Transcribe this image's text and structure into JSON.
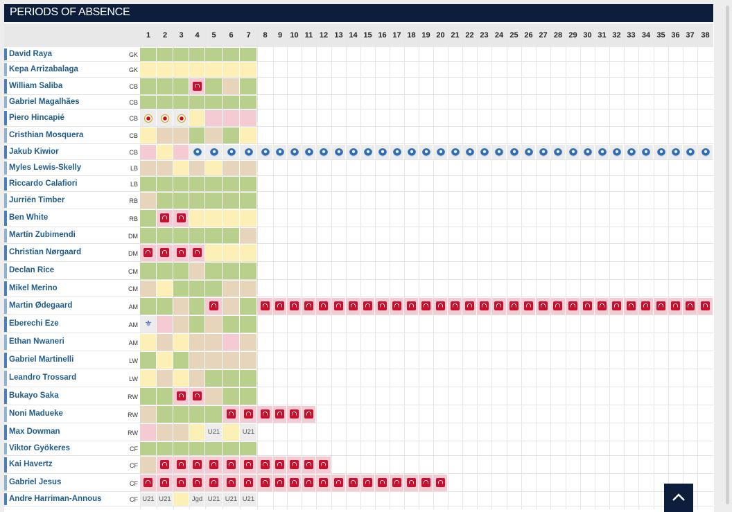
{
  "title": "PERIODS OF ABSENCE",
  "matchdays": [
    "1",
    "2",
    "3",
    "4",
    "5",
    "6",
    "7",
    "8",
    "9",
    "10",
    "11",
    "12",
    "13",
    "14",
    "15",
    "16",
    "17",
    "18",
    "19",
    "20",
    "21",
    "22",
    "23",
    "24",
    "25",
    "26",
    "27",
    "28",
    "29",
    "30",
    "31",
    "32",
    "33",
    "34",
    "35",
    "36",
    "37",
    "38"
  ],
  "colors": {
    "played": "#b8d08b",
    "bench": "#fdf0b7",
    "unused": "#e6d4bb",
    "absent": "#f4cbd3",
    "out": "#ececec",
    "pos_bar": "#4b7fb6"
  },
  "legend_codes": {
    "P": "played",
    "B": "bench",
    "U": "unused",
    "A": "absent",
    "O": "out",
    "i": "injury-icon",
    "L": "leverkusen-icon",
    "T": "porto-icon",
    "C": "crystal-palace-icon"
  },
  "players": [
    {
      "name": "David Raya",
      "pos": "GK",
      "cells": [
        "P",
        "P",
        "P",
        "P",
        "P",
        "P",
        "P"
      ]
    },
    {
      "name": "Kepa Arrizabalaga",
      "pos": "GK",
      "cells": [
        "B",
        "B",
        "B",
        "B",
        "B",
        "B",
        "B"
      ]
    },
    {
      "name": "William Saliba",
      "pos": "CB",
      "cells": [
        "P",
        "P",
        "P",
        "A:i",
        "P",
        "U",
        "P"
      ]
    },
    {
      "name": "Gabriel Magalhães",
      "pos": "CB",
      "cells": [
        "P",
        "P",
        "P",
        "P",
        "P",
        "P",
        "P"
      ]
    },
    {
      "name": "Piero Hincapié",
      "pos": "CB",
      "cells": [
        "O:L",
        "O:L",
        "O:L",
        "B",
        "A",
        "A",
        "A"
      ]
    },
    {
      "name": "Cristhian Mosquera",
      "pos": "CB",
      "cells": [
        "B",
        "U",
        "U",
        "P",
        "U",
        "P",
        "B"
      ]
    },
    {
      "name": "Jakub Kiwior",
      "pos": "CB",
      "cells": [
        "A",
        "B",
        "A",
        "O:T",
        "O:T",
        "O:T",
        "O:T",
        "O:T",
        "O:T",
        "O:T",
        "O:T",
        "O:T",
        "O:T",
        "O:T",
        "O:T",
        "O:T",
        "O:T",
        "O:T",
        "O:T",
        "O:T",
        "O:T",
        "O:T",
        "O:T",
        "O:T",
        "O:T",
        "O:T",
        "O:T",
        "O:T",
        "O:T",
        "O:T",
        "O:T",
        "O:T",
        "O:T",
        "O:T",
        "O:T",
        "O:T",
        "O:T",
        "O:T"
      ]
    },
    {
      "name": "Myles Lewis-Skelly",
      "pos": "LB",
      "cells": [
        "U",
        "U",
        "B",
        "U",
        "B",
        "U",
        "U"
      ]
    },
    {
      "name": "Riccardo Calafiori",
      "pos": "LB",
      "cells": [
        "P",
        "P",
        "P",
        "P",
        "P",
        "P",
        "P"
      ]
    },
    {
      "name": "Jurriën Timber",
      "pos": "RB",
      "cells": [
        "U",
        "P",
        "P",
        "P",
        "P",
        "P",
        "P"
      ]
    },
    {
      "name": "Ben White",
      "pos": "RB",
      "cells": [
        "P",
        "A:i",
        "A:i",
        "B",
        "B",
        "B",
        "B"
      ]
    },
    {
      "name": "Martín Zubimendi",
      "pos": "DM",
      "cells": [
        "P",
        "P",
        "P",
        "P",
        "P",
        "P",
        "U"
      ]
    },
    {
      "name": "Christian Nørgaard",
      "pos": "DM",
      "cells": [
        "A:i",
        "A:i",
        "A:i",
        "A:i",
        "B",
        "B",
        "B"
      ]
    },
    {
      "name": "Declan Rice",
      "pos": "CM",
      "cells": [
        "P",
        "P",
        "P",
        "U",
        "P",
        "P",
        "P"
      ]
    },
    {
      "name": "Mikel Merino",
      "pos": "CM",
      "cells": [
        "U",
        "B",
        "P",
        "P",
        "P",
        "U",
        "U"
      ]
    },
    {
      "name": "Martin Ødegaard",
      "pos": "AM",
      "cells": [
        "P",
        "P",
        "U",
        "P",
        "A:i",
        "U",
        "P",
        "A:i",
        "A:i",
        "A:i",
        "A:i",
        "A:i",
        "A:i",
        "A:i",
        "A:i",
        "A:i",
        "A:i",
        "A:i",
        "A:i",
        "A:i",
        "A:i",
        "A:i",
        "A:i",
        "A:i",
        "A:i",
        "A:i",
        "A:i",
        "A:i",
        "A:i",
        "A:i",
        "A:i",
        "A:i",
        "A:i",
        "A:i",
        "A:i",
        "A:i",
        "A:i",
        "A:i"
      ]
    },
    {
      "name": "Eberechi Eze",
      "pos": "AM",
      "cells": [
        "O:C",
        "A",
        "U",
        "P",
        "U",
        "P",
        "P"
      ]
    },
    {
      "name": "Ethan Nwaneri",
      "pos": "AM",
      "cells": [
        "B",
        "U",
        "B",
        "U",
        "U",
        "A",
        "U"
      ]
    },
    {
      "name": "Gabriel Martinelli",
      "pos": "LW",
      "cells": [
        "P",
        "B",
        "P",
        "U",
        "U",
        "U",
        "U"
      ]
    },
    {
      "name": "Leandro Trossard",
      "pos": "LW",
      "cells": [
        "B",
        "U",
        "B",
        "U",
        "P",
        "P",
        "P"
      ]
    },
    {
      "name": "Bukayo Saka",
      "pos": "RW",
      "cells": [
        "P",
        "P",
        "A:i",
        "A:i",
        "U",
        "P",
        "P"
      ]
    },
    {
      "name": "Noni Madueke",
      "pos": "RW",
      "cells": [
        "U",
        "P",
        "P",
        "P",
        "P",
        "A:i",
        "A:i",
        "A:i",
        "A:i",
        "A:i",
        "A:i"
      ]
    },
    {
      "name": "Max Dowman",
      "pos": "RW",
      "cells": [
        "A",
        "U",
        "U",
        "B",
        "O:U21",
        "B",
        "O:U21"
      ]
    },
    {
      "name": "Viktor Gyökeres",
      "pos": "CF",
      "cells": [
        "P",
        "P",
        "P",
        "P",
        "P",
        "P",
        "P"
      ]
    },
    {
      "name": "Kai Havertz",
      "pos": "CF",
      "cells": [
        "U",
        "A:i",
        "A:i",
        "A:i",
        "A:i",
        "A:i",
        "A:i",
        "A:i",
        "A:i",
        "A:i",
        "A:i",
        "A:i"
      ]
    },
    {
      "name": "Gabriel Jesus",
      "pos": "CF",
      "cells": [
        "A:i",
        "A:i",
        "A:i",
        "A:i",
        "A:i",
        "A:i",
        "A:i",
        "A:i",
        "A:i",
        "A:i",
        "A:i",
        "A:i",
        "A:i",
        "A:i",
        "A:i",
        "A:i",
        "A:i",
        "A:i",
        "A:i",
        "A:i"
      ]
    },
    {
      "name": "Andre Harriman-Annous",
      "pos": "CF",
      "cells": [
        "O:U21",
        "O:U21",
        "B",
        "O:Jgd",
        "O:U21",
        "O:U21",
        "O:U21"
      ]
    }
  ]
}
